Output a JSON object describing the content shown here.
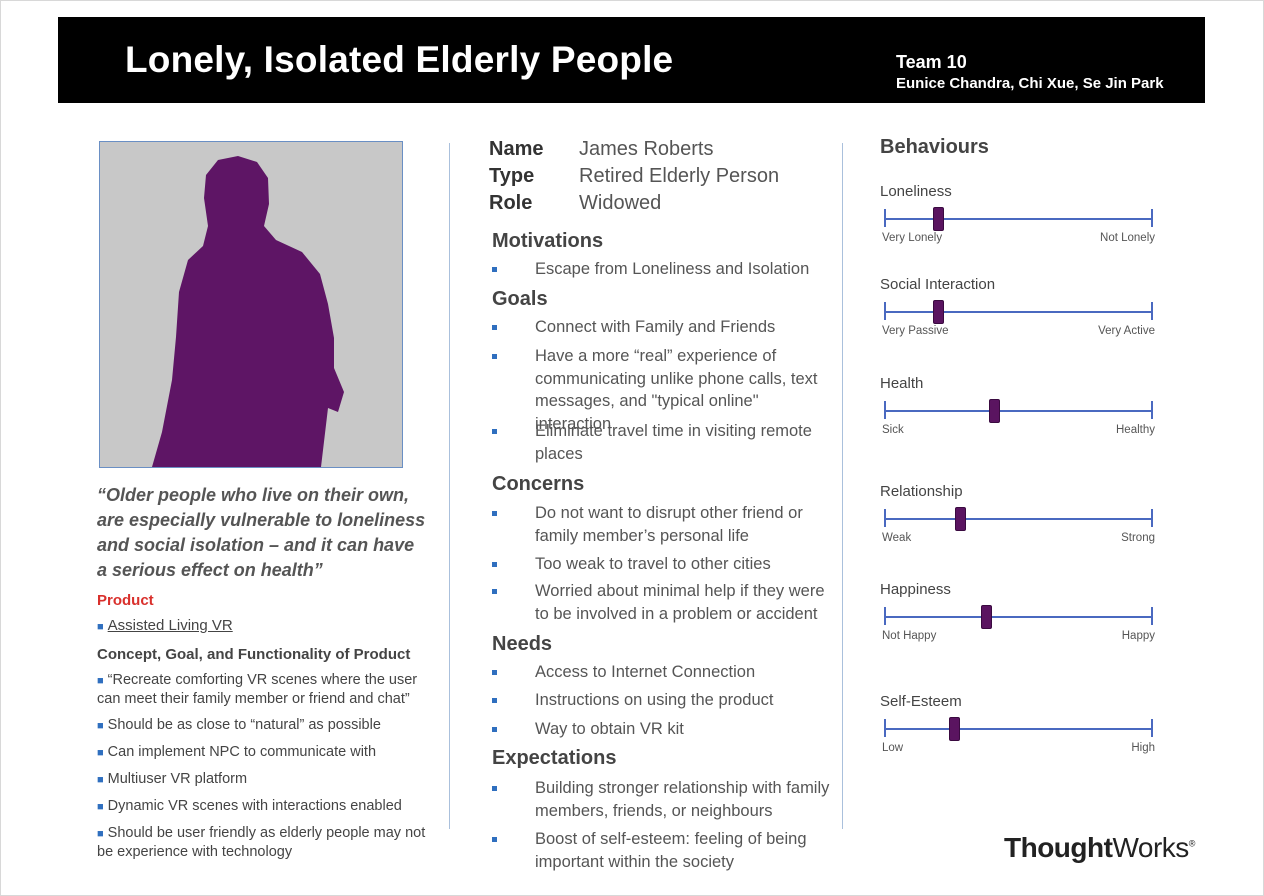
{
  "header": {
    "title": "Lonely, Isolated Elderly People",
    "team": "Team 10",
    "members": "Eunice Chandra, Chi Xue, Se Jin Park"
  },
  "photo": {
    "icon": "person-silhouette-icon",
    "silhouette_color": "#5e1565",
    "background": "#c8c8c8"
  },
  "quote": "“Older people who live on their own, are especially vulnerable to loneliness and social isolation – and it can have a serious effect on health”",
  "product": {
    "heading": "Product",
    "item": "Assisted Living VR",
    "concept_heading": "Concept, Goal, and Functionality of Product",
    "concepts": [
      "“Recreate comforting VR scenes where the user can meet their family member or friend and chat”",
      "Should be as close to “natural” as possible",
      "Can implement NPC to communicate with",
      "Multiuser VR platform",
      "Dynamic VR scenes with interactions enabled",
      "Should be user friendly as elderly people may not be experience with technology"
    ]
  },
  "persona": {
    "name_label": "Name",
    "name": "James Roberts",
    "type_label": "Type",
    "type": "Retired Elderly Person",
    "role_label": "Role",
    "role": "Widowed"
  },
  "motivations": {
    "heading": "Motivations",
    "items": [
      "Escape from Loneliness and Isolation"
    ]
  },
  "goals": {
    "heading": "Goals",
    "items": [
      "Connect with Family and Friends",
      "Have a more “real” experience of communicating unlike phone calls, text messages, and \"typical online\" interaction",
      "Eliminate travel time in visiting remote places"
    ]
  },
  "concerns": {
    "heading": "Concerns",
    "items": [
      "Do not want to disrupt other friend or family member’s personal life",
      "Too weak to travel to other cities",
      "Worried about minimal help if they were to be involved in a problem or accident"
    ]
  },
  "needs": {
    "heading": "Needs",
    "items": [
      "Access to Internet Connection",
      "Instructions on using the product",
      "Way to obtain VR kit"
    ]
  },
  "expectations": {
    "heading": "Expectations",
    "items": [
      "Building stronger relationship with family members, friends, or neighbours",
      "Boost of self-esteem: feeling of being important within the society"
    ]
  },
  "behaviours": {
    "heading": "Behaviours",
    "accent": "#4a69c0",
    "thumb_color": "#5a1460",
    "sliders": [
      {
        "label": "Loneliness",
        "low": "Very Lonely",
        "high": "Not Lonely",
        "value": 0.2
      },
      {
        "label": "Social Interaction",
        "low": "Very Passive",
        "high": "Very Active",
        "value": 0.2
      },
      {
        "label": "Health",
        "low": "Sick",
        "high": "Healthy",
        "value": 0.41
      },
      {
        "label": "Relationship",
        "low": "Weak",
        "high": "Strong",
        "value": 0.28
      },
      {
        "label": "Happiness",
        "low": "Not Happy",
        "high": "Happy",
        "value": 0.38
      },
      {
        "label": "Self-Esteem",
        "low": "Low",
        "high": "High",
        "value": 0.26
      }
    ]
  },
  "logo": {
    "bold": "Thought",
    "regular": "Works",
    "mark": "®"
  }
}
